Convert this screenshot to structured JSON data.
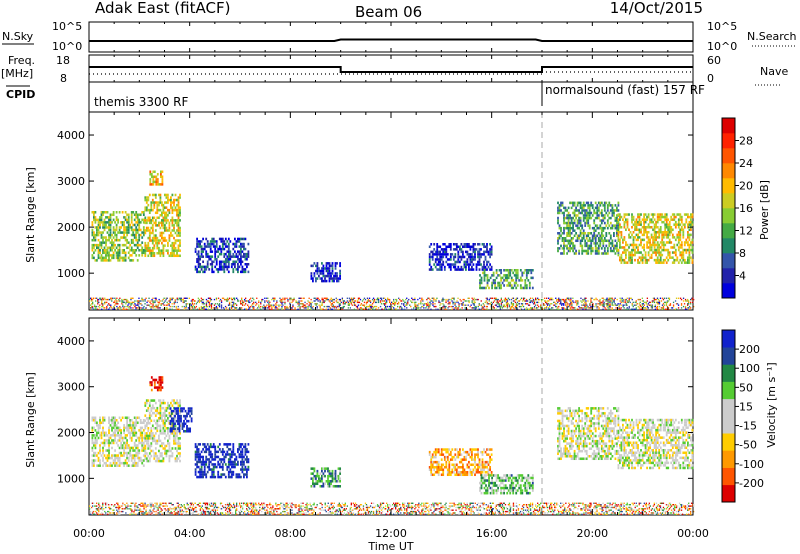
{
  "header": {
    "station": "Adak East (fitACF)",
    "beam": "Beam 06",
    "date": "14/Oct/2015"
  },
  "top_panels": {
    "nsky_label": "N.Sky",
    "nsky_ticks": [
      "10^5",
      "10^0"
    ],
    "nsearch_label": "N.Search",
    "nsearch_ticks": [
      "10^5",
      "10^0"
    ],
    "freq_label": "Freq.",
    "freq_unit": "[MHz]",
    "freq_ticks": [
      "18",
      "8"
    ],
    "nave_label": "Nave",
    "nave_ticks": [
      "60",
      "0"
    ],
    "cpid_label": "CPID",
    "cpid_segments": [
      {
        "label": "themis 3300 RF",
        "start_h": 0,
        "end_h": 18
      },
      {
        "label": "normalsound (fast) 157 RF",
        "start_h": 18,
        "end_h": 24
      }
    ]
  },
  "colors": {
    "power": [
      "#0000dd",
      "#2222aa",
      "#3355aa",
      "#228866",
      "#44aa44",
      "#88cc33",
      "#cccc22",
      "#ffbb00",
      "#ff8800",
      "#ff5500",
      "#ff2200",
      "#dd0000"
    ],
    "velocity": [
      "#dd0000",
      "#ff5500",
      "#ff9900",
      "#ffcc00",
      "#cccccc",
      "#cccccc",
      "#55cc33",
      "#228844",
      "#224499",
      "#1122cc"
    ]
  },
  "chart_data": [
    {
      "type": "heatmap",
      "panel": "power",
      "ylabel": "Slant Range [km]",
      "yticks": [
        "4000",
        "3000",
        "2000",
        "1000"
      ],
      "ylim": [
        200,
        4500
      ],
      "xlim": [
        0,
        24
      ],
      "colorbar_label": "Power [dB]",
      "colorbar_ticks": [
        "28",
        "24",
        "20",
        "16",
        "12",
        "8",
        "4"
      ],
      "colorbar_range": [
        0,
        30
      ],
      "cpid_boundary_h": 18,
      "regions": [
        {
          "t0": 0.1,
          "t1": 2.2,
          "r0": 1250,
          "r1": 2350,
          "level": 0.45
        },
        {
          "t0": 2.2,
          "t1": 3.6,
          "r0": 1350,
          "r1": 2700,
          "level": 0.55
        },
        {
          "t0": 2.4,
          "t1": 2.9,
          "r0": 2900,
          "r1": 3200,
          "level": 0.6
        },
        {
          "t0": 4.2,
          "t1": 6.3,
          "r0": 1000,
          "r1": 1750,
          "level": 0.15
        },
        {
          "t0": 8.8,
          "t1": 10.0,
          "r0": 800,
          "r1": 1200,
          "level": 0.12
        },
        {
          "t0": 13.5,
          "t1": 16.0,
          "r0": 1050,
          "r1": 1650,
          "level": 0.12
        },
        {
          "t0": 15.5,
          "t1": 17.6,
          "r0": 650,
          "r1": 1050,
          "level": 0.35
        },
        {
          "t0": 18.6,
          "t1": 21.0,
          "r0": 1400,
          "r1": 2550,
          "level": 0.35
        },
        {
          "t0": 21.0,
          "t1": 23.95,
          "r0": 1200,
          "r1": 2300,
          "level": 0.55
        },
        {
          "t0": 0.0,
          "t1": 24.0,
          "r0": 200,
          "r1": 450,
          "level": 0.5
        }
      ]
    },
    {
      "type": "heatmap",
      "panel": "velocity",
      "ylabel": "Slant Range [km]",
      "yticks": [
        "4000",
        "3000",
        "2000",
        "1000"
      ],
      "ylim": [
        200,
        4500
      ],
      "xlim": [
        0,
        24
      ],
      "xlabel": "Time UT",
      "xticks": [
        "00:00",
        "04:00",
        "08:00",
        "12:00",
        "16:00",
        "20:00",
        "00:00"
      ],
      "colorbar_label": "Velocity [m s⁻¹]",
      "colorbar_ticks": [
        "200",
        "100",
        "50",
        "15",
        "-15",
        "-50",
        "-100",
        "-200"
      ],
      "colorbar_range": [
        -250,
        250
      ],
      "cpid_boundary_h": 18,
      "regions": [
        {
          "t0": 0.1,
          "t1": 2.2,
          "r0": 1250,
          "r1": 2350,
          "level": 0.5
        },
        {
          "t0": 2.2,
          "t1": 3.6,
          "r0": 1350,
          "r1": 2700,
          "level": 0.5
        },
        {
          "t0": 3.2,
          "t1": 4.1,
          "r0": 2000,
          "r1": 2500,
          "level": 0.95
        },
        {
          "t0": 2.4,
          "t1": 2.9,
          "r0": 2900,
          "r1": 3200,
          "level": 0.05
        },
        {
          "t0": 4.2,
          "t1": 6.3,
          "r0": 1000,
          "r1": 1750,
          "level": 0.95
        },
        {
          "t0": 8.8,
          "t1": 10.0,
          "r0": 800,
          "r1": 1200,
          "level": 0.7
        },
        {
          "t0": 13.5,
          "t1": 16.0,
          "r0": 1050,
          "r1": 1650,
          "level": 0.3
        },
        {
          "t0": 15.5,
          "t1": 17.6,
          "r0": 650,
          "r1": 1050,
          "level": 0.65
        },
        {
          "t0": 18.6,
          "t1": 21.0,
          "r0": 1400,
          "r1": 2550,
          "level": 0.5
        },
        {
          "t0": 21.0,
          "t1": 23.95,
          "r0": 1200,
          "r1": 2300,
          "level": 0.5
        },
        {
          "t0": 0.0,
          "t1": 24.0,
          "r0": 200,
          "r1": 450,
          "level": 0.4
        }
      ]
    }
  ]
}
